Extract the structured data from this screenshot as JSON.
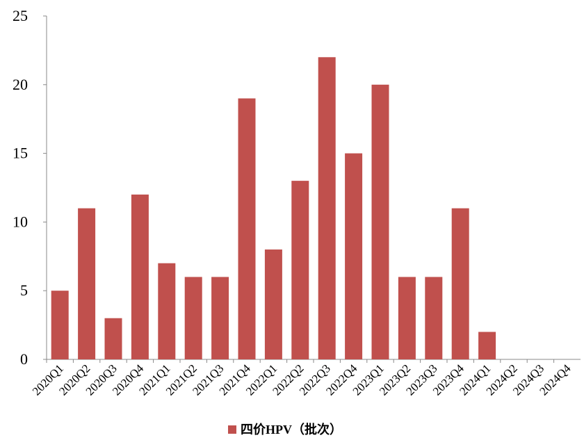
{
  "chart_data": {
    "type": "bar",
    "categories": [
      "2020Q1",
      "2020Q2",
      "2020Q3",
      "2020Q4",
      "2021Q1",
      "2021Q2",
      "2021Q3",
      "2021Q4",
      "2022Q1",
      "2022Q2",
      "2022Q3",
      "2022Q4",
      "2023Q1",
      "2023Q2",
      "2023Q3",
      "2023Q4",
      "2024Q1",
      "2024Q2",
      "2024Q3",
      "2024Q4"
    ],
    "series": [
      {
        "name": "四价HPV（批次）",
        "color": "#c0504d",
        "values": [
          5,
          11,
          3,
          12,
          7,
          6,
          6,
          19,
          8,
          13,
          22,
          15,
          20,
          6,
          6,
          11,
          2,
          0,
          0,
          0
        ]
      }
    ],
    "ylim": [
      0,
      25
    ],
    "yticks": [
      0,
      5,
      10,
      15,
      20,
      25
    ],
    "grid": false,
    "legend": "bottom"
  }
}
